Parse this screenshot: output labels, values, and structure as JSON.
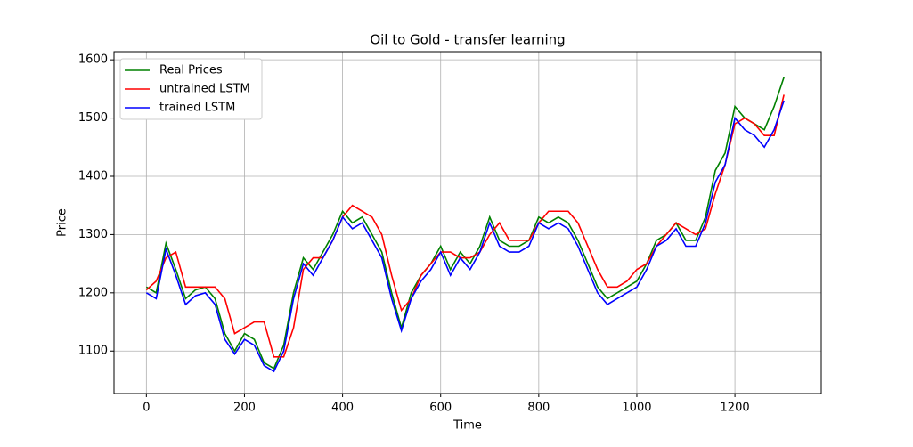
{
  "chart_data": {
    "type": "line",
    "title": "Oil to Gold - transfer learning",
    "x_label": "Time",
    "y_label": "Price",
    "x": [
      0,
      20,
      40,
      60,
      80,
      100,
      120,
      140,
      160,
      180,
      200,
      220,
      240,
      260,
      280,
      300,
      320,
      340,
      360,
      380,
      400,
      420,
      440,
      460,
      480,
      500,
      520,
      540,
      560,
      580,
      600,
      620,
      640,
      660,
      680,
      700,
      720,
      740,
      760,
      780,
      800,
      820,
      840,
      860,
      880,
      900,
      920,
      940,
      960,
      980,
      1000,
      1020,
      1040,
      1060,
      1080,
      1100,
      1120,
      1140,
      1160,
      1180,
      1200,
      1220,
      1240,
      1260,
      1280,
      1300
    ],
    "series": [
      {
        "name": "Real Prices",
        "color": "#008000",
        "values": [
          1210,
          1200,
          1285,
          1240,
          1190,
          1205,
          1210,
          1190,
          1130,
          1100,
          1130,
          1120,
          1080,
          1070,
          1110,
          1200,
          1260,
          1240,
          1270,
          1300,
          1340,
          1320,
          1330,
          1300,
          1270,
          1200,
          1140,
          1200,
          1230,
          1250,
          1280,
          1240,
          1270,
          1250,
          1280,
          1330,
          1290,
          1280,
          1280,
          1290,
          1330,
          1320,
          1330,
          1320,
          1290,
          1250,
          1210,
          1190,
          1200,
          1210,
          1220,
          1250,
          1290,
          1300,
          1320,
          1290,
          1290,
          1330,
          1410,
          1440,
          1520,
          1500,
          1490,
          1480,
          1520,
          1570
        ]
      },
      {
        "name": "untrained LSTM",
        "color": "#ff0000",
        "values": [
          1205,
          1220,
          1260,
          1270,
          1210,
          1210,
          1210,
          1210,
          1190,
          1130,
          1140,
          1150,
          1150,
          1090,
          1090,
          1140,
          1240,
          1260,
          1260,
          1290,
          1330,
          1350,
          1340,
          1330,
          1300,
          1230,
          1170,
          1190,
          1230,
          1250,
          1270,
          1270,
          1260,
          1260,
          1270,
          1300,
          1320,
          1290,
          1290,
          1290,
          1320,
          1340,
          1340,
          1340,
          1320,
          1280,
          1240,
          1210,
          1210,
          1220,
          1240,
          1250,
          1280,
          1300,
          1320,
          1310,
          1300,
          1310,
          1370,
          1420,
          1490,
          1500,
          1490,
          1470,
          1470,
          1540
        ]
      },
      {
        "name": "trained LSTM",
        "color": "#0000ff",
        "values": [
          1200,
          1190,
          1275,
          1230,
          1180,
          1195,
          1200,
          1180,
          1120,
          1095,
          1120,
          1110,
          1075,
          1065,
          1100,
          1190,
          1250,
          1230,
          1260,
          1290,
          1330,
          1310,
          1320,
          1290,
          1260,
          1190,
          1135,
          1190,
          1220,
          1240,
          1270,
          1230,
          1260,
          1240,
          1270,
          1320,
          1280,
          1270,
          1270,
          1280,
          1320,
          1310,
          1320,
          1310,
          1280,
          1240,
          1200,
          1180,
          1190,
          1200,
          1210,
          1240,
          1280,
          1290,
          1310,
          1280,
          1280,
          1320,
          1390,
          1420,
          1500,
          1480,
          1470,
          1450,
          1480,
          1530
        ]
      }
    ],
    "xlim": [
      -66,
      1376
    ],
    "ylim": [
      1027,
      1614
    ],
    "xticks": [
      0,
      200,
      400,
      600,
      800,
      1000,
      1200
    ],
    "yticks": [
      1100,
      1200,
      1300,
      1400,
      1500,
      1600
    ],
    "grid": true,
    "legend": "upper-left"
  }
}
